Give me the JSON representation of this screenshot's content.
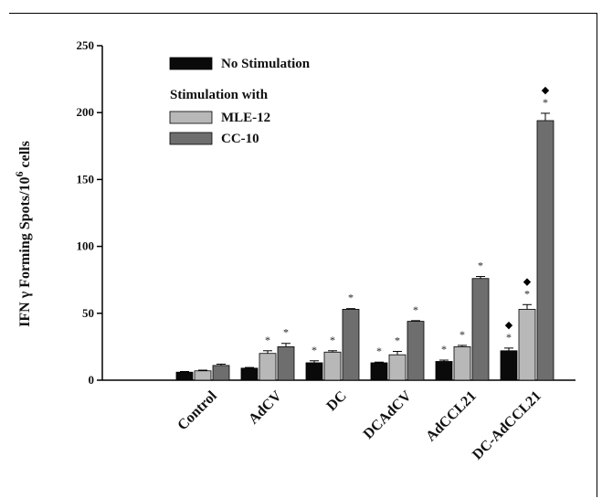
{
  "chart_data": {
    "type": "bar",
    "ylabel_main": "IFN γ Forming Spots/10",
    "ylabel_sup": "6",
    "ylabel_tail": " cells",
    "xlabel": "",
    "ylim": [
      0,
      250
    ],
    "yticks": [
      0,
      50,
      100,
      150,
      200,
      250
    ],
    "grid": false,
    "legend_placement": "top-left",
    "legend_subheading": "Stimulation with",
    "categories": [
      "Control",
      "AdCV",
      "DC",
      "DCAdCV",
      "AdCCL21",
      "DC-AdCCL21"
    ],
    "series": [
      {
        "name": "No Stimulation",
        "color": "#0a0a0a",
        "values": [
          6,
          9,
          13,
          13,
          14,
          22
        ],
        "errors": [
          0.5,
          0.5,
          1.5,
          0.5,
          1,
          2
        ],
        "stars": [
          false,
          false,
          true,
          true,
          true,
          true
        ],
        "diamonds": [
          false,
          false,
          false,
          false,
          false,
          true
        ]
      },
      {
        "name": "MLE-12",
        "color": "#b8b8b8",
        "values": [
          7,
          20,
          21,
          19,
          25,
          53
        ],
        "errors": [
          0.5,
          2,
          1,
          2.5,
          1,
          3.5
        ],
        "stars": [
          false,
          true,
          true,
          true,
          true,
          true
        ],
        "diamonds": [
          false,
          false,
          false,
          false,
          false,
          true
        ]
      },
      {
        "name": "CC-10",
        "color": "#6e6e6e",
        "values": [
          11,
          25,
          53,
          44,
          76,
          194
        ],
        "errors": [
          1,
          2.5,
          0.5,
          0.5,
          1.5,
          5.5
        ],
        "stars": [
          false,
          true,
          true,
          true,
          true,
          true
        ],
        "diamonds": [
          false,
          false,
          false,
          false,
          false,
          true
        ]
      }
    ],
    "star_symbol": "*",
    "diamond_symbol": "◆"
  }
}
